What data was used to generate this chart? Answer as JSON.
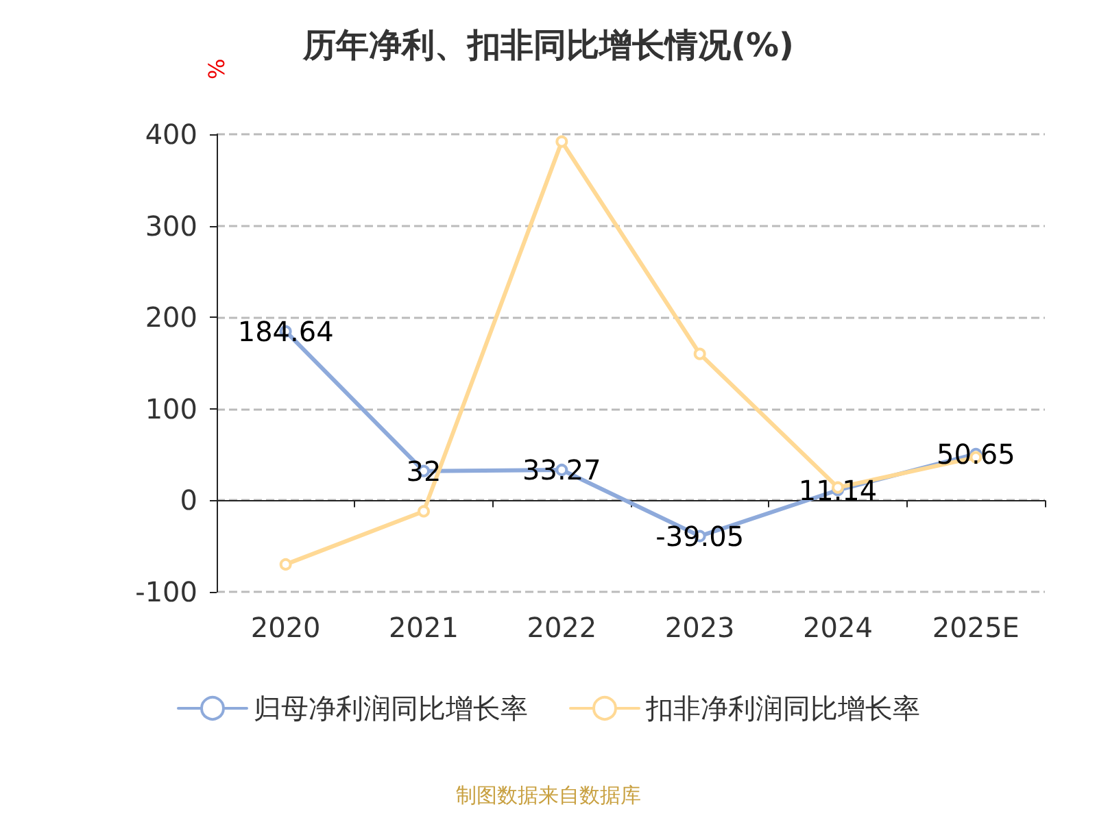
{
  "chart_data": {
    "type": "line",
    "title": "历年净利、扣非同比增长情况(%)",
    "ylabel": "%",
    "categories": [
      "2020",
      "2021",
      "2022",
      "2023",
      "2024",
      "2025E"
    ],
    "series": [
      {
        "name": "归母净利润同比增长率",
        "color": "#8eaadb",
        "values": [
          184.64,
          32,
          33.27,
          -39.05,
          11.14,
          50.65
        ],
        "value_labels": [
          "184.64",
          "32",
          "33.27",
          "-39.05",
          "11.14",
          "50.65"
        ]
      },
      {
        "name": "扣非净利润同比增长率",
        "color": "#ffd995",
        "values": [
          -70,
          -12,
          392,
          160,
          14,
          47
        ]
      }
    ],
    "ylim": [
      -100,
      400
    ],
    "yticks": [
      -100,
      0,
      100,
      200,
      300,
      400
    ],
    "grid": "y",
    "legend": "bottom",
    "marker": "circle",
    "line_style": "solid",
    "annotations": [
      "制图数据来自数据库"
    ]
  }
}
